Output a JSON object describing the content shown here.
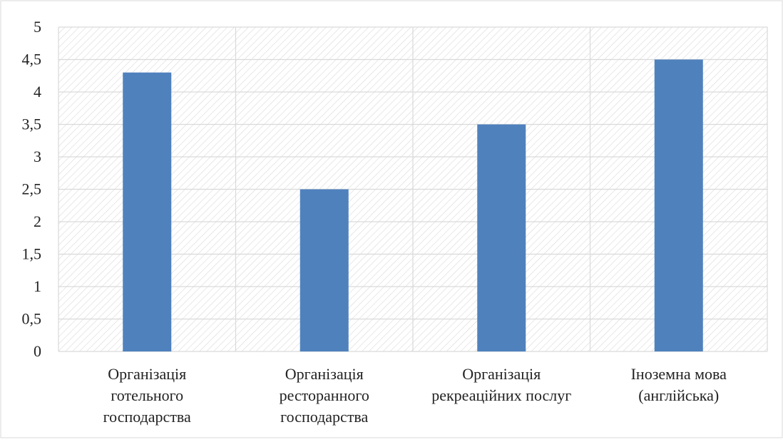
{
  "chart_data": {
    "type": "bar",
    "categories": [
      [
        "Організація",
        "готельного",
        "господарства"
      ],
      [
        "Організація",
        "ресторанного",
        "господарства"
      ],
      [
        "Організація",
        "рекреаційних послуг"
      ],
      [
        "Іноземна мова",
        "(англійська)"
      ]
    ],
    "values": [
      4.3,
      2.5,
      3.5,
      4.5
    ],
    "ylim": [
      0,
      5
    ],
    "yticks": [
      0,
      0.5,
      1,
      1.5,
      2,
      2.5,
      3,
      3.5,
      4,
      4.5,
      5
    ],
    "ytick_labels": [
      "0",
      "0,5",
      "1",
      "1,5",
      "2",
      "2,5",
      "3",
      "3,5",
      "4",
      "4,5",
      "5"
    ],
    "title": "",
    "xlabel": "",
    "ylabel": "",
    "grid": true,
    "legend": "none",
    "colors": {
      "bar": "#4f81bd",
      "grid": "#d9d9d9",
      "hatch": "#d9d9d9",
      "border": "#d9d9d9",
      "plot_background": "#ffffff"
    },
    "plot_pattern": "diagonal-hatch"
  }
}
